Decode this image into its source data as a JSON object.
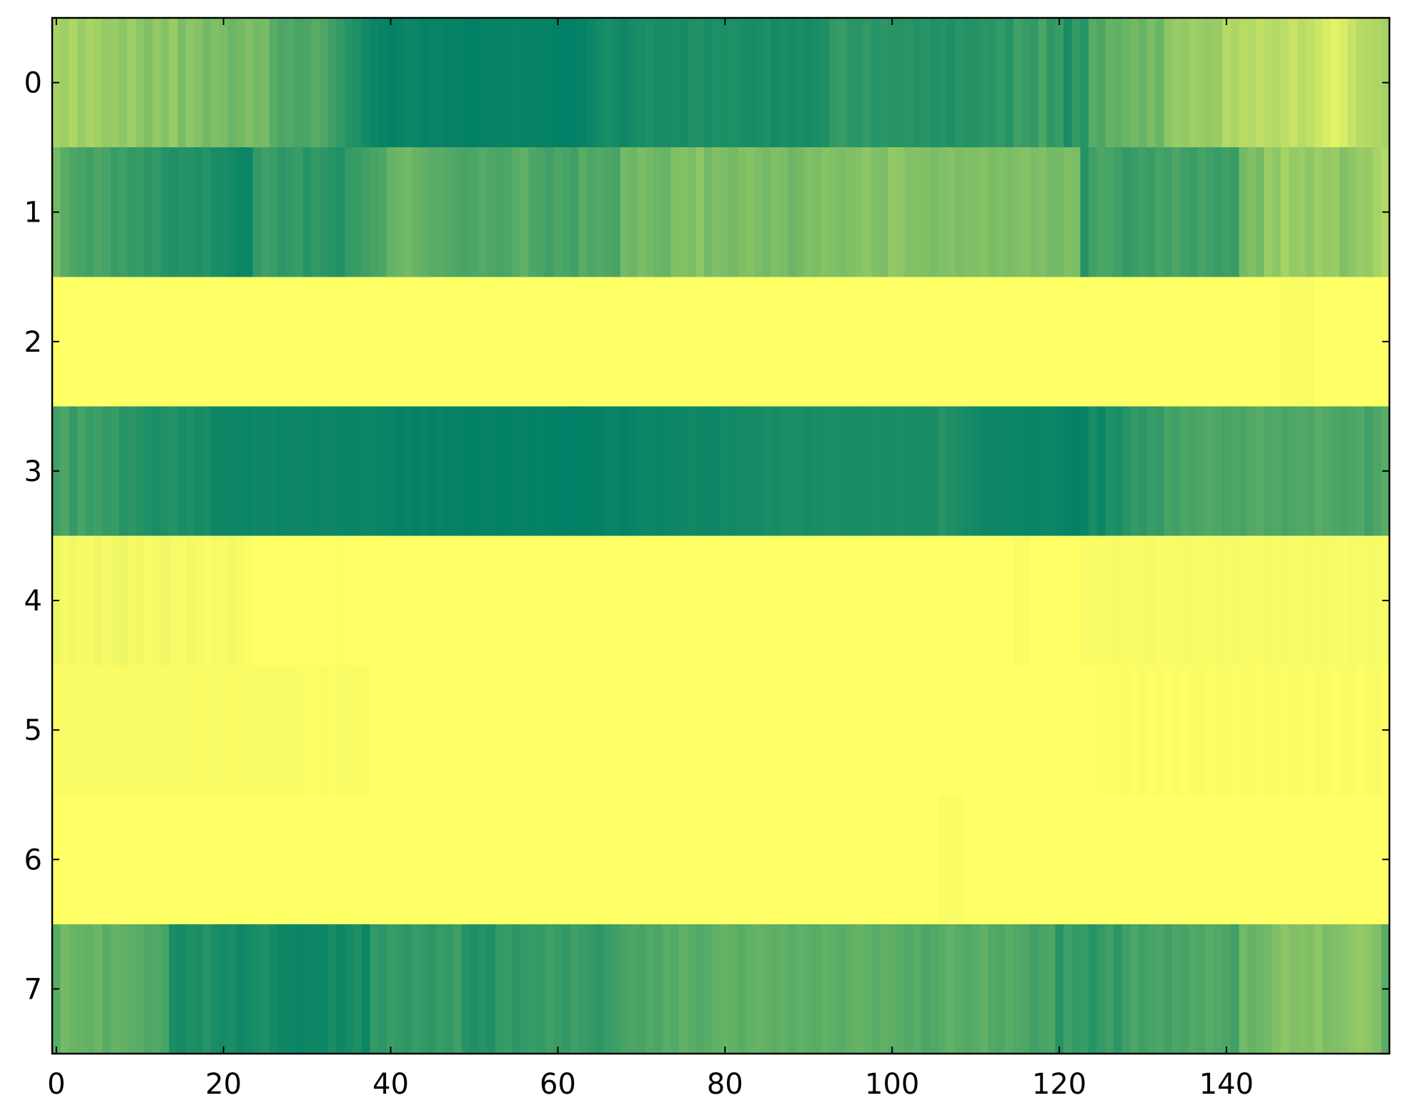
{
  "chart_data": {
    "type": "heatmap",
    "colormap": "summer",
    "xlim": [
      -0.5,
      159.5
    ],
    "ylim": [
      7.5,
      -0.5
    ],
    "xticks": [
      0,
      20,
      40,
      60,
      80,
      100,
      120,
      140
    ],
    "yticks": [
      0,
      1,
      2,
      3,
      4,
      5,
      6,
      7
    ],
    "values": [
      [
        0.65,
        0.62,
        0.68,
        0.6,
        0.66,
        0.63,
        0.58,
        0.6,
        0.55,
        0.62,
        0.55,
        0.5,
        0.58,
        0.52,
        0.6,
        0.48,
        0.55,
        0.52,
        0.45,
        0.5,
        0.48,
        0.42,
        0.45,
        0.5,
        0.45,
        0.47,
        0.35,
        0.3,
        0.32,
        0.28,
        0.3,
        0.35,
        0.3,
        0.25,
        0.2,
        0.15,
        0.12,
        0.08,
        0.05,
        0.03,
        0.02,
        0.03,
        0.05,
        0.04,
        0.02,
        0.03,
        0.03,
        0.02,
        0.02,
        0.01,
        0.01,
        0.02,
        0.02,
        0.03,
        0.02,
        0.03,
        0.02,
        0.03,
        0.02,
        0.02,
        0.01,
        0,
        0.01,
        0.02,
        0.05,
        0.08,
        0.1,
        0.08,
        0.06,
        0.09,
        0.1,
        0.12,
        0.1,
        0.09,
        0.11,
        0.08,
        0.12,
        0.13,
        0.1,
        0.12,
        0.11,
        0.12,
        0.1,
        0.09,
        0.1,
        0.12,
        0.08,
        0.1,
        0.09,
        0.11,
        0.08,
        0.1,
        0.12,
        0.2,
        0.22,
        0.18,
        0.16,
        0.2,
        0.15,
        0.18,
        0.16,
        0.15,
        0.17,
        0.14,
        0.16,
        0.13,
        0.15,
        0.12,
        0.16,
        0.14,
        0.15,
        0.18,
        0.16,
        0.2,
        0.15,
        0.25,
        0.22,
        0.2,
        0.3,
        0.18,
        0.22,
        0.1,
        0.2,
        0.15,
        0.35,
        0.3,
        0.4,
        0.38,
        0.42,
        0.45,
        0.4,
        0.48,
        0.42,
        0.55,
        0.6,
        0.58,
        0.62,
        0.6,
        0.58,
        0.6,
        0.7,
        0.68,
        0.72,
        0.7,
        0.75,
        0.72,
        0.7,
        0.74,
        0.78,
        0.72,
        0.75,
        0.8,
        0.85,
        0.9,
        0.86,
        0.78,
        0.72,
        0.7,
        0.68,
        0.65
      ],
      [
        0.45,
        0.35,
        0.3,
        0.28,
        0.25,
        0.3,
        0.28,
        0.22,
        0.25,
        0.2,
        0.22,
        0.18,
        0.2,
        0.15,
        0.12,
        0.15,
        0.14,
        0.12,
        0.15,
        0.1,
        0.1,
        0.08,
        0.05,
        0.05,
        0.2,
        0.25,
        0.22,
        0.18,
        0.2,
        0.22,
        0.15,
        0.2,
        0.18,
        0.15,
        0.12,
        0.2,
        0.22,
        0.25,
        0.28,
        0.3,
        0.4,
        0.42,
        0.45,
        0.4,
        0.38,
        0.35,
        0.35,
        0.32,
        0.3,
        0.28,
        0.3,
        0.33,
        0.3,
        0.28,
        0.3,
        0.35,
        0.38,
        0.3,
        0.28,
        0.25,
        0.3,
        0.28,
        0.25,
        0.35,
        0.3,
        0.32,
        0.3,
        0.28,
        0.45,
        0.42,
        0.48,
        0.45,
        0.42,
        0.4,
        0.5,
        0.52,
        0.48,
        0.55,
        0.45,
        0.5,
        0.48,
        0.45,
        0.5,
        0.52,
        0.48,
        0.45,
        0.5,
        0.48,
        0.42,
        0.45,
        0.5,
        0.48,
        0.52,
        0.5,
        0.48,
        0.5,
        0.52,
        0.55,
        0.5,
        0.48,
        0.58,
        0.55,
        0.5,
        0.52,
        0.5,
        0.48,
        0.5,
        0.52,
        0.48,
        0.5,
        0.5,
        0.52,
        0.48,
        0.5,
        0.48,
        0.5,
        0.52,
        0.48,
        0.5,
        0.45,
        0.45,
        0.5,
        0.48,
        0.15,
        0.25,
        0.3,
        0.28,
        0.25,
        0.2,
        0.22,
        0.25,
        0.22,
        0.28,
        0.25,
        0.3,
        0.25,
        0.22,
        0.28,
        0.25,
        0.22,
        0.25,
        0.22,
        0.45,
        0.5,
        0.45,
        0.6,
        0.55,
        0.65,
        0.58,
        0.6,
        0.55,
        0.62,
        0.58,
        0.6,
        0.5,
        0.55,
        0.6,
        0.58,
        0.65,
        0.7
      ],
      [
        1,
        1,
        1,
        1,
        1,
        1,
        1,
        1,
        1,
        1,
        1,
        1,
        1,
        1,
        1,
        1,
        1,
        1,
        1,
        1,
        1,
        1,
        1,
        1,
        1,
        1,
        1,
        1,
        1,
        1,
        1,
        1,
        1,
        1,
        1,
        1,
        1,
        1,
        1,
        1,
        1,
        1,
        1,
        1,
        1,
        1,
        1,
        1,
        1,
        1,
        1,
        1,
        1,
        1,
        1,
        1,
        1,
        1,
        1,
        1,
        1,
        1,
        1,
        1,
        1,
        1,
        1,
        1,
        1,
        1,
        1,
        1,
        1,
        1,
        1,
        1,
        1,
        1,
        1,
        1,
        1,
        1,
        1,
        1,
        1,
        1,
        1,
        1,
        1,
        1,
        1,
        1,
        1,
        1,
        1,
        1,
        1,
        1,
        1,
        1,
        1,
        1,
        1,
        1,
        1,
        1,
        1,
        1,
        1,
        1,
        1,
        1,
        1,
        1,
        1,
        1,
        1,
        1,
        1,
        1,
        1,
        1,
        1,
        1,
        1,
        1,
        1,
        1,
        1,
        1,
        1,
        1,
        1,
        1,
        1,
        1,
        1,
        1,
        1,
        1,
        1,
        1,
        1,
        1,
        1,
        1,
        1,
        0.98,
        0.98,
        0.98,
        0.98,
        1,
        1,
        1,
        1,
        1,
        1,
        1,
        1,
        1
      ],
      [
        0.25,
        0.3,
        0.2,
        0.28,
        0.22,
        0.25,
        0.2,
        0.22,
        0.15,
        0.18,
        0.15,
        0.12,
        0.1,
        0.12,
        0.15,
        0.1,
        0.12,
        0.08,
        0.1,
        0.06,
        0.05,
        0.06,
        0.05,
        0.04,
        0.06,
        0.05,
        0.06,
        0.04,
        0.05,
        0.06,
        0.05,
        0.04,
        0.06,
        0.05,
        0.04,
        0.03,
        0.04,
        0.05,
        0.04,
        0.03,
        0.03,
        0.02,
        0.03,
        0.02,
        0.03,
        0.02,
        0.03,
        0.02,
        0.02,
        0.01,
        0.01,
        0.02,
        0.02,
        0.01,
        0.01,
        0.02,
        0.02,
        0.01,
        0.02,
        0.01,
        0.01,
        0.01,
        0,
        0.01,
        0.01,
        0.02,
        0.03,
        0.03,
        0.02,
        0.03,
        0.04,
        0.05,
        0.04,
        0.04,
        0.05,
        0.06,
        0.07,
        0.06,
        0.05,
        0.06,
        0.08,
        0.07,
        0.08,
        0.09,
        0.08,
        0.1,
        0.09,
        0.1,
        0.11,
        0.1,
        0.09,
        0.1,
        0.1,
        0.11,
        0.1,
        0.1,
        0.09,
        0.1,
        0.11,
        0.1,
        0.1,
        0.11,
        0.1,
        0.1,
        0.09,
        0.1,
        0.15,
        0.12,
        0.1,
        0.08,
        0.07,
        0.05,
        0.06,
        0.05,
        0.04,
        0.05,
        0.04,
        0.03,
        0.04,
        0.05,
        0.03,
        0.02,
        0.01,
        0.03,
        0.1,
        0.05,
        0.12,
        0.1,
        0.15,
        0.2,
        0.18,
        0.22,
        0.2,
        0.28,
        0.25,
        0.3,
        0.28,
        0.3,
        0.32,
        0.3,
        0.28,
        0.3,
        0.28,
        0.32,
        0.35,
        0.3,
        0.32,
        0.28,
        0.3,
        0.32,
        0.3,
        0.35,
        0.32,
        0.3,
        0.28,
        0.3,
        0.32,
        0.25,
        0.3,
        0.35
      ],
      [
        0.94,
        0.96,
        0.95,
        0.96,
        0.97,
        0.94,
        0.96,
        0.95,
        0.93,
        0.96,
        0.95,
        0.97,
        0.96,
        0.94,
        0.96,
        0.97,
        0.95,
        0.96,
        0.98,
        0.96,
        0.97,
        0.95,
        0.96,
        0.98,
        1,
        1,
        1,
        1,
        1,
        1,
        1,
        1,
        1,
        1,
        0.99,
        1,
        1,
        1,
        1,
        1,
        1,
        1,
        1,
        1,
        1,
        1,
        1,
        1,
        1,
        1,
        1,
        1,
        1,
        1,
        1,
        1,
        1,
        1,
        1,
        1,
        1,
        1,
        1,
        1,
        1,
        1,
        1,
        1,
        1,
        1,
        1,
        1,
        1,
        1,
        1,
        1,
        1,
        1,
        1,
        1,
        1,
        1,
        1,
        1,
        1,
        1,
        1,
        1,
        1,
        1,
        1,
        1,
        1,
        1,
        1,
        1,
        1,
        1,
        1,
        1,
        1,
        1,
        1,
        1,
        1,
        1,
        1,
        1,
        1,
        1,
        1,
        1,
        1,
        1,
        1,
        0.98,
        0.98,
        1,
        1,
        1,
        1,
        1,
        1,
        0.97,
        0.98,
        0.97,
        0.98,
        0.96,
        0.98,
        0.97,
        0.97,
        0.96,
        0.98,
        0.97,
        0.97,
        0.96,
        0.97,
        0.98,
        0.97,
        0.96,
        0.97,
        0.96,
        0.97,
        0.98,
        0.97,
        0.96,
        0.97,
        0.96,
        0.98,
        0.97,
        0.96,
        0.97,
        0.96,
        0.97,
        0.98,
        0.96,
        0.97,
        0.96,
        0.97,
        0.96
      ],
      [
        0.98,
        0.98,
        0.97,
        0.98,
        0.97,
        0.98,
        0.97,
        0.98,
        0.97,
        0.98,
        0.97,
        0.98,
        0.97,
        0.98,
        0.97,
        0.98,
        0.97,
        0.98,
        0.98,
        0.97,
        0.98,
        0.98,
        0.97,
        0.98,
        0.97,
        0.98,
        0.97,
        0.98,
        0.97,
        0.98,
        0.99,
        0.99,
        0.98,
        0.99,
        0.98,
        0.97,
        0.98,
        0.98,
        1,
        1,
        1,
        1,
        1,
        1,
        1,
        1,
        1,
        1,
        1,
        1,
        1,
        1,
        1,
        1,
        1,
        1,
        1,
        1,
        1,
        1,
        1,
        1,
        1,
        1,
        1,
        1,
        1,
        1,
        1,
        1,
        1,
        1,
        1,
        1,
        1,
        1,
        1,
        1,
        1,
        1,
        1,
        1,
        1,
        1,
        1,
        1,
        1,
        1,
        1,
        1,
        1,
        1,
        1,
        1,
        1,
        1,
        1,
        1,
        1,
        1,
        1,
        1,
        1,
        1,
        1,
        1,
        1,
        1,
        1,
        1,
        1,
        1,
        1,
        1,
        1,
        1,
        1,
        1,
        1,
        1,
        1,
        1,
        1,
        1,
        1,
        0.99,
        0.99,
        0.99,
        0.98,
        0.99,
        0.98,
        0.99,
        0.98,
        0.99,
        0.98,
        0.99,
        0.98,
        0.98,
        0.99,
        0.98,
        0.98,
        0.99,
        0.98,
        0.98,
        0.99,
        0.98,
        0.98,
        0.99,
        0.98,
        0.98,
        0.99,
        0.98,
        0.98,
        0.99,
        0.98,
        0.98,
        0.99,
        0.98,
        0.98,
        0.99
      ],
      [
        1,
        1,
        1,
        1,
        1,
        1,
        1,
        1,
        1,
        1,
        1,
        1,
        1,
        1,
        1,
        1,
        1,
        1,
        1,
        1,
        1,
        1,
        1,
        1,
        1,
        1,
        1,
        1,
        1,
        1,
        1,
        1,
        1,
        1,
        1,
        1,
        1,
        1,
        1,
        1,
        1,
        1,
        1,
        1,
        1,
        1,
        1,
        1,
        1,
        1,
        1,
        1,
        1,
        1,
        1,
        1,
        1,
        1,
        1,
        1,
        1,
        1,
        1,
        1,
        1,
        1,
        1,
        1,
        1,
        1,
        1,
        1,
        1,
        1,
        1,
        1,
        1,
        1,
        1,
        1,
        1,
        1,
        1,
        1,
        1,
        1,
        1,
        1,
        1,
        1,
        1,
        1,
        1,
        1,
        1,
        1,
        1,
        1,
        1,
        1,
        1,
        1,
        1,
        1,
        1,
        1,
        0.98,
        0.98,
        0.98,
        1,
        1,
        1,
        1,
        1,
        1,
        1,
        1,
        1,
        1,
        1,
        1,
        1,
        1,
        1,
        1,
        1,
        1,
        1,
        1,
        1,
        1,
        1,
        1,
        1,
        1,
        1,
        1,
        1,
        1,
        1,
        1,
        1,
        1,
        1,
        1,
        1,
        1,
        1,
        1,
        1,
        1,
        1,
        1,
        1,
        1,
        1,
        1,
        1,
        1,
        1
      ],
      [
        0.35,
        0.45,
        0.42,
        0.4,
        0.38,
        0.42,
        0.35,
        0.4,
        0.38,
        0.36,
        0.35,
        0.3,
        0.32,
        0.28,
        0.1,
        0.08,
        0.12,
        0.1,
        0.15,
        0.1,
        0.08,
        0.1,
        0.06,
        0.08,
        0.1,
        0.12,
        0.08,
        0.05,
        0.06,
        0.04,
        0.05,
        0.06,
        0.05,
        0.1,
        0.05,
        0.08,
        0.12,
        0.05,
        0.2,
        0.18,
        0.22,
        0.2,
        0.18,
        0.22,
        0.2,
        0.18,
        0.22,
        0.2,
        0.25,
        0.15,
        0.12,
        0.15,
        0.12,
        0.2,
        0.22,
        0.18,
        0.2,
        0.22,
        0.2,
        0.25,
        0.22,
        0.2,
        0.25,
        0.22,
        0.2,
        0.18,
        0.22,
        0.25,
        0.28,
        0.3,
        0.28,
        0.32,
        0.3,
        0.35,
        0.32,
        0.38,
        0.35,
        0.32,
        0.35,
        0.38,
        0.4,
        0.38,
        0.35,
        0.38,
        0.4,
        0.38,
        0.36,
        0.38,
        0.35,
        0.38,
        0.36,
        0.35,
        0.38,
        0.36,
        0.35,
        0.38,
        0.4,
        0.38,
        0.35,
        0.38,
        0.36,
        0.35,
        0.32,
        0.35,
        0.3,
        0.32,
        0.35,
        0.38,
        0.35,
        0.32,
        0.35,
        0.38,
        0.32,
        0.3,
        0.35,
        0.32,
        0.3,
        0.25,
        0.28,
        0.3,
        0.15,
        0.25,
        0.2,
        0.22,
        0.15,
        0.2,
        0.25,
        0.18,
        0.25,
        0.3,
        0.25,
        0.28,
        0.3,
        0.25,
        0.3,
        0.28,
        0.32,
        0.3,
        0.35,
        0.32,
        0.3,
        0.25,
        0.45,
        0.4,
        0.42,
        0.45,
        0.5,
        0.55,
        0.5,
        0.52,
        0.5,
        0.55,
        0.48,
        0.5,
        0.52,
        0.55,
        0.58,
        0.55,
        0.5,
        0.35
      ]
    ]
  }
}
